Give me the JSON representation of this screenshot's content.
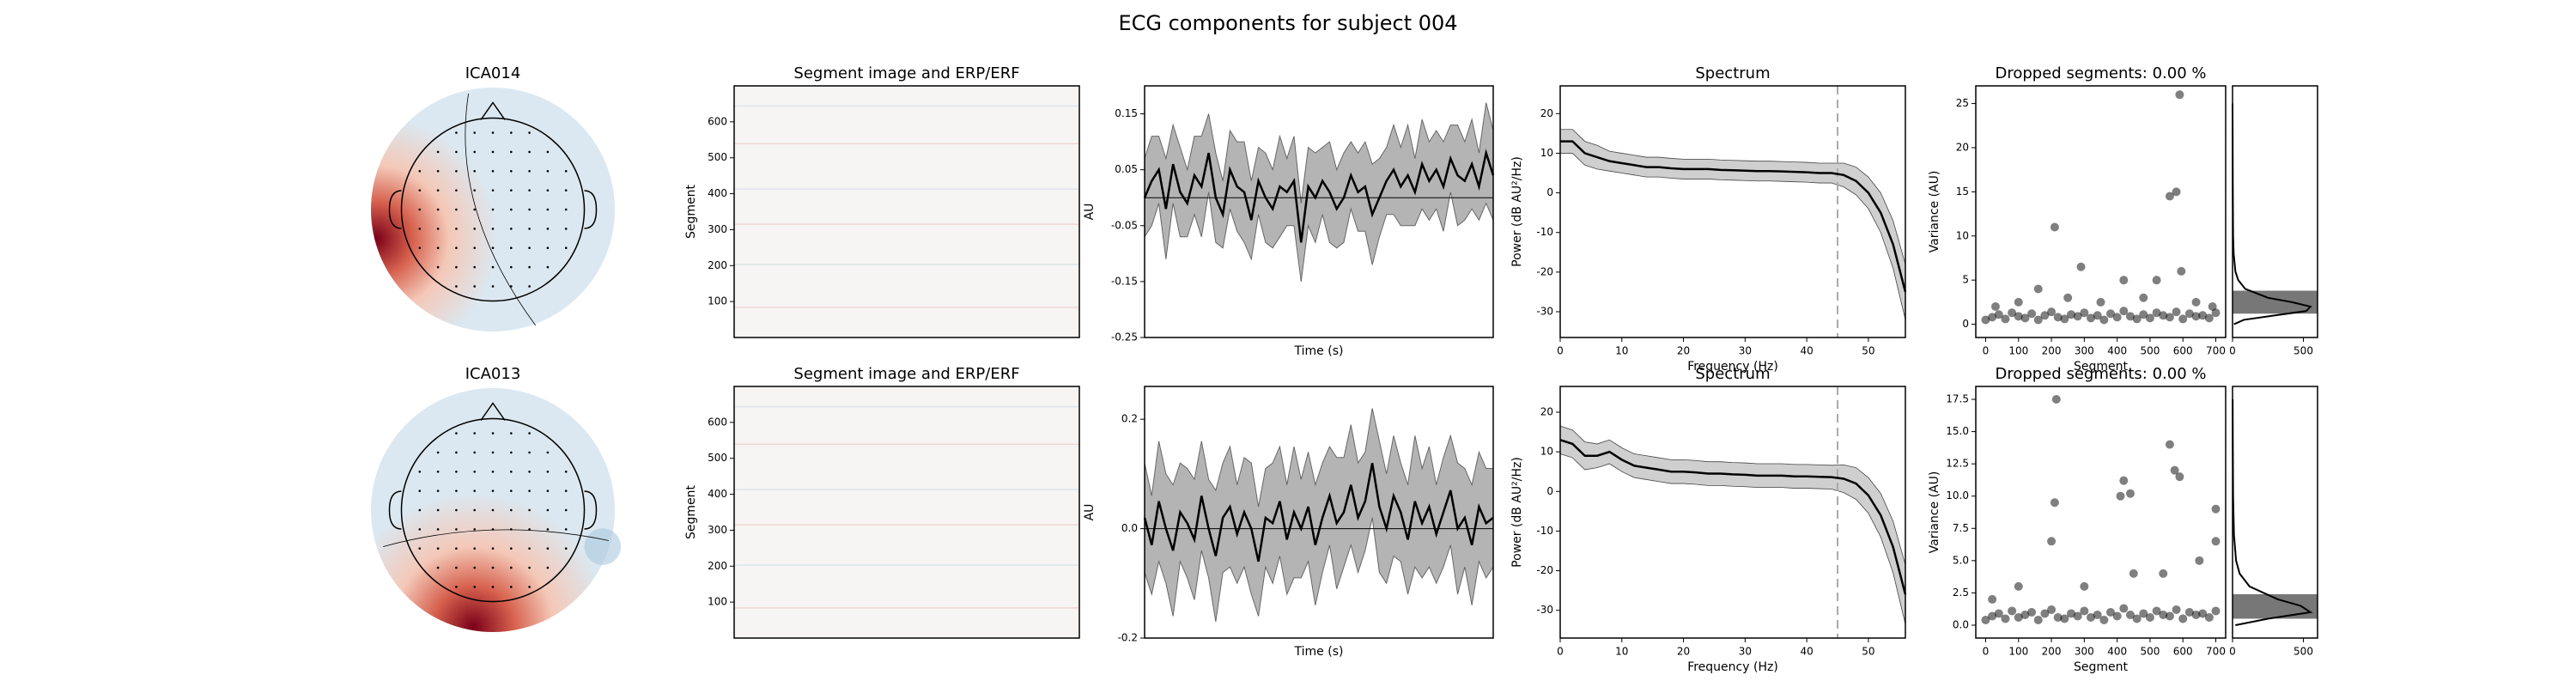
{
  "title": "ECG components for subject 004",
  "chart_data": [
    {
      "type": "topomap",
      "title": "ICA014"
    },
    {
      "type": "image",
      "title": "Segment image and ERP/ERF",
      "ylabel": "Segment",
      "ylim": [
        0,
        700
      ],
      "yticks": [
        100,
        200,
        300,
        400,
        500,
        600
      ]
    },
    {
      "type": "line",
      "ylabel": "AU",
      "xlabel": "Time (s)",
      "ylim": [
        -0.25,
        0.2
      ],
      "yticks": [
        -0.25,
        -0.15,
        -0.05,
        0.05,
        0.15
      ],
      "hline": 0,
      "values": [
        0.0,
        0.03,
        0.05,
        -0.02,
        0.06,
        0.01,
        -0.01,
        0.04,
        0.02,
        0.08,
        0.0,
        -0.03,
        0.05,
        0.02,
        0.01,
        -0.04,
        0.03,
        0.0,
        -0.02,
        0.02,
        0.01,
        0.03,
        -0.08,
        0.02,
        0.0,
        0.03,
        0.01,
        -0.02,
        0.0,
        0.04,
        0.01,
        0.02,
        -0.03,
        0.0,
        0.03,
        0.05,
        0.02,
        0.04,
        0.01,
        0.06,
        0.03,
        0.05,
        0.02,
        0.07,
        0.04,
        0.03,
        0.06,
        0.02,
        0.08,
        0.04
      ],
      "errors": [
        0.07,
        0.08,
        0.06,
        0.09,
        0.07,
        0.08,
        0.06,
        0.07,
        0.09,
        0.07,
        0.08,
        0.06,
        0.07,
        0.08,
        0.09,
        0.07,
        0.06,
        0.08,
        0.07,
        0.09,
        0.06,
        0.08,
        0.07,
        0.07,
        0.08,
        0.06,
        0.09,
        0.07,
        0.08,
        0.06,
        0.07,
        0.08,
        0.09,
        0.07,
        0.06,
        0.08,
        0.07,
        0.09,
        0.06,
        0.08,
        0.07,
        0.07,
        0.08,
        0.06,
        0.09,
        0.07,
        0.08,
        0.06,
        0.09,
        0.08
      ]
    },
    {
      "type": "line",
      "title": "Spectrum",
      "xlabel": "Frequency (Hz)",
      "ylabel": "Power (dB AU²/Hz)",
      "xlim": [
        0,
        56
      ],
      "xticks": [
        0,
        10,
        20,
        30,
        40,
        50
      ],
      "ylim": [
        -36.5,
        27
      ],
      "yticks": [
        -30,
        -20,
        -10,
        0,
        10,
        20
      ],
      "vline": 45,
      "x": [
        0,
        2,
        4,
        6,
        8,
        10,
        12,
        14,
        16,
        18,
        20,
        22,
        24,
        26,
        28,
        30,
        32,
        34,
        36,
        38,
        40,
        42,
        44,
        46,
        48,
        50,
        52,
        54,
        56
      ],
      "values": [
        13,
        13,
        10,
        9,
        8,
        7.5,
        7,
        6.5,
        6.5,
        6.2,
        6,
        6,
        6,
        5.8,
        5.7,
        5.6,
        5.5,
        5.5,
        5.4,
        5.3,
        5.2,
        5,
        5,
        4.5,
        3,
        0,
        -5,
        -13,
        -25
      ],
      "errors": [
        3,
        3,
        3,
        3,
        2.5,
        2.5,
        2.5,
        2.5,
        2.5,
        2.5,
        2.5,
        2.5,
        2.5,
        2.5,
        2.5,
        2.5,
        2.5,
        2.5,
        2.5,
        2.5,
        2.5,
        2.5,
        2.5,
        3,
        3.5,
        4,
        5,
        6,
        7
      ]
    },
    {
      "type": "scatter",
      "title": "Dropped segments: 0.00 %",
      "xlabel": "Segment",
      "ylabel": "Variance (AU)",
      "xlim": [
        -30,
        730
      ],
      "xticks": [
        0,
        100,
        200,
        300,
        400,
        500,
        600,
        700
      ],
      "ylim": [
        -1.5,
        27
      ],
      "yticks": [
        0,
        5,
        10,
        15,
        20,
        25
      ],
      "x": [
        0,
        20,
        40,
        60,
        80,
        100,
        120,
        140,
        160,
        180,
        200,
        220,
        240,
        260,
        280,
        300,
        320,
        340,
        360,
        380,
        400,
        420,
        440,
        460,
        480,
        500,
        520,
        540,
        560,
        580,
        600,
        620,
        640,
        660,
        680,
        700,
        210,
        590,
        560,
        580,
        290,
        420,
        595,
        30,
        100,
        160,
        250,
        350,
        480,
        520,
        640,
        690
      ],
      "y": [
        0.5,
        0.8,
        1.1,
        0.6,
        1.3,
        0.9,
        0.7,
        1.2,
        0.5,
        1.0,
        1.4,
        0.8,
        0.6,
        1.1,
        0.9,
        1.3,
        0.7,
        1.0,
        0.5,
        1.2,
        0.8,
        1.5,
        0.9,
        0.6,
        1.1,
        0.7,
        1.3,
        1.0,
        0.8,
        1.4,
        0.6,
        1.2,
        0.9,
        1.0,
        0.7,
        1.3,
        11,
        26,
        14.5,
        15,
        6.5,
        5,
        6,
        2,
        2.5,
        4,
        3,
        2.5,
        3,
        5,
        2.5,
        2
      ]
    },
    {
      "type": "density",
      "xlim": [
        0,
        600
      ],
      "xticks": [
        0,
        500
      ],
      "ylim": [
        -1.5,
        27
      ],
      "band": [
        1.2,
        3.8
      ],
      "y": [
        0,
        0.5,
        1,
        1.5,
        2,
        2.5,
        3,
        4,
        5,
        6,
        8,
        10,
        15,
        20,
        25
      ],
      "values": [
        10,
        80,
        300,
        520,
        550,
        420,
        250,
        90,
        40,
        20,
        8,
        4,
        2,
        1,
        0
      ]
    },
    {
      "type": "topomap",
      "title": "ICA013"
    },
    {
      "type": "image",
      "title": "Segment image and ERP/ERF",
      "ylabel": "Segment",
      "ylim": [
        0,
        700
      ],
      "yticks": [
        100,
        200,
        300,
        400,
        500,
        600
      ]
    },
    {
      "type": "line",
      "ylabel": "AU",
      "xlabel": "Time (s)",
      "ylim": [
        -0.2,
        0.26
      ],
      "yticks": [
        -0.2,
        {
          "value": 0,
          "label": "0.0"
        },
        0.2
      ],
      "hline": 0,
      "values": [
        0.02,
        -0.03,
        0.05,
        0.0,
        -0.04,
        0.03,
        0.01,
        -0.02,
        0.06,
        0.0,
        -0.05,
        0.02,
        0.04,
        -0.01,
        0.03,
        0.0,
        -0.06,
        0.02,
        0.01,
        0.05,
        -0.02,
        0.03,
        0.0,
        0.04,
        -0.03,
        0.02,
        0.06,
        0.01,
        0.03,
        0.08,
        0.02,
        0.05,
        0.12,
        0.04,
        0.0,
        0.06,
        0.03,
        -0.02,
        0.05,
        0.01,
        0.04,
        -0.01,
        0.03,
        0.07,
        0.0,
        0.02,
        -0.03,
        0.04,
        0.01,
        0.02
      ],
      "errors": [
        0.1,
        0.09,
        0.11,
        0.1,
        0.12,
        0.09,
        0.1,
        0.11,
        0.1,
        0.09,
        0.12,
        0.1,
        0.11,
        0.09,
        0.1,
        0.12,
        0.1,
        0.09,
        0.11,
        0.1,
        0.1,
        0.12,
        0.09,
        0.1,
        0.11,
        0.1,
        0.09,
        0.12,
        0.1,
        0.11,
        0.1,
        0.09,
        0.1,
        0.12,
        0.1,
        0.11,
        0.09,
        0.1,
        0.12,
        0.1,
        0.11,
        0.09,
        0.1,
        0.1,
        0.12,
        0.09,
        0.11,
        0.1,
        0.1,
        0.09
      ]
    },
    {
      "type": "line",
      "title": "Spectrum",
      "xlabel": "Frequency (Hz)",
      "ylabel": "Power (dB AU²/Hz)",
      "xlim": [
        0,
        56
      ],
      "xticks": [
        0,
        10,
        20,
        30,
        40,
        50
      ],
      "ylim": [
        -37,
        26.5
      ],
      "yticks": [
        -30,
        -20,
        -10,
        0,
        10,
        20
      ],
      "vline": 45,
      "x": [
        0,
        2,
        4,
        6,
        8,
        10,
        12,
        14,
        16,
        18,
        20,
        22,
        24,
        26,
        28,
        30,
        32,
        34,
        36,
        38,
        40,
        42,
        44,
        46,
        48,
        50,
        52,
        54,
        56
      ],
      "values": [
        13,
        12,
        9,
        9,
        10,
        8,
        6.5,
        6,
        5.5,
        5,
        5,
        4.8,
        4.5,
        4.5,
        4.3,
        4.2,
        4,
        4,
        4,
        3.8,
        3.8,
        3.7,
        3.6,
        3.2,
        2,
        -1,
        -6,
        -14,
        -26
      ],
      "errors": [
        3.5,
        3.5,
        3.5,
        3,
        3,
        3,
        3,
        3,
        3,
        3,
        3,
        3,
        3,
        3,
        3,
        3,
        3,
        3,
        3,
        3,
        3,
        3,
        3,
        3.5,
        4,
        4.5,
        5.5,
        6.5,
        7.5
      ]
    },
    {
      "type": "scatter",
      "title": "Dropped segments: 0.00 %",
      "xlabel": "Segment",
      "ylabel": "Variance (AU)",
      "xlim": [
        -30,
        730
      ],
      "xticks": [
        0,
        100,
        200,
        300,
        400,
        500,
        600,
        700
      ],
      "ylim": [
        -1,
        18.5
      ],
      "yticks": [
        {
          "value": 0,
          "label": "0.0"
        },
        2.5,
        {
          "value": 5,
          "label": "5.0"
        },
        7.5,
        {
          "value": 10,
          "label": "10.0"
        },
        12.5,
        {
          "value": 15,
          "label": "15.0"
        },
        17.5
      ],
      "x": [
        0,
        20,
        40,
        60,
        80,
        100,
        120,
        140,
        160,
        180,
        200,
        220,
        240,
        260,
        280,
        300,
        320,
        340,
        360,
        380,
        400,
        420,
        440,
        460,
        480,
        500,
        520,
        540,
        560,
        580,
        600,
        620,
        640,
        660,
        680,
        700,
        215,
        210,
        560,
        575,
        590,
        420,
        440,
        410,
        700,
        700,
        100,
        200,
        300,
        450,
        540,
        650,
        20
      ],
      "y": [
        0.4,
        0.7,
        0.9,
        0.5,
        1.1,
        0.6,
        0.8,
        1.0,
        0.4,
        0.9,
        1.2,
        0.6,
        0.5,
        0.9,
        0.7,
        1.1,
        0.6,
        0.8,
        0.4,
        1.0,
        0.7,
        1.3,
        0.8,
        0.5,
        0.9,
        0.6,
        1.1,
        0.8,
        0.7,
        1.2,
        0.5,
        1.0,
        0.8,
        0.9,
        0.6,
        1.1,
        17.5,
        9.5,
        14,
        12,
        11.5,
        11.2,
        10.2,
        10,
        9,
        6.5,
        3,
        6.5,
        3,
        4,
        4,
        5,
        2
      ]
    },
    {
      "type": "density",
      "xlim": [
        0,
        600
      ],
      "xticks": [
        0,
        500
      ],
      "ylim": [
        -1,
        18.5
      ],
      "band": [
        0.5,
        2.4
      ],
      "y": [
        0,
        0.5,
        1,
        1.5,
        2,
        3,
        4,
        5,
        7,
        10,
        14,
        17.5
      ],
      "values": [
        20,
        250,
        550,
        480,
        320,
        120,
        50,
        25,
        10,
        4,
        2,
        1
      ]
    }
  ]
}
